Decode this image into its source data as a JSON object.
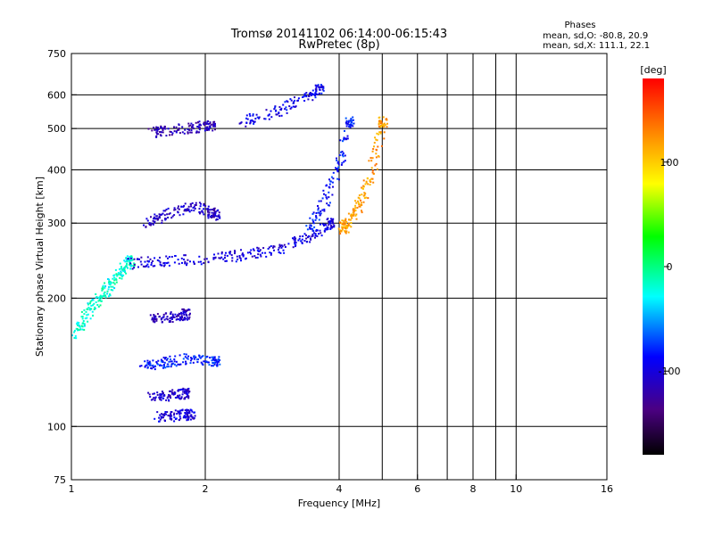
{
  "chart_data": {
    "type": "scatter",
    "title": "Tromsø 20141102 06:14:00-06:15:43",
    "subtitle": "RwPretec (8p)",
    "xlabel": "Frequency [MHz]",
    "ylabel": "Stationary phase Virtual Height [km]",
    "x_scale": "log",
    "y_scale": "log",
    "xlim": [
      1,
      16
    ],
    "ylim": [
      75,
      750
    ],
    "x_ticks": [
      1,
      2,
      4,
      6,
      8,
      10,
      16
    ],
    "x_tick_labels": [
      "1",
      "2",
      "4",
      "6",
      "8",
      "10",
      "16"
    ],
    "x_gridlines": [
      2,
      4,
      6,
      8,
      10
    ],
    "x_minor_gridlines": [
      5,
      7,
      9
    ],
    "y_ticks": [
      75,
      100,
      200,
      300,
      400,
      500,
      600,
      750
    ],
    "y_tick_labels": [
      "75",
      "100",
      "200",
      "300",
      "400",
      "500",
      "600",
      "750"
    ],
    "y_gridlines": [
      100,
      200,
      300,
      400,
      500,
      600
    ],
    "grid": true,
    "legend": {
      "heading": "Phases",
      "line1": "mean, sd,O: -80.8, 20.9",
      "line2": "mean, sd,X: 111.1, 22.1"
    },
    "colorbar": {
      "label": "[deg]",
      "min": -180,
      "max": 180,
      "ticks": [
        100,
        0,
        -100
      ],
      "tick_labels": [
        "100",
        "0",
        "-100"
      ]
    },
    "traces": [
      {
        "x": [
          1.0,
          1.05,
          1.1,
          1.15,
          1.2,
          1.25,
          1.3,
          1.35
        ],
        "y": [
          160,
          175,
          190,
          200,
          210,
          225,
          235,
          245
        ],
        "color_value": -20
      },
      {
        "x": [
          1.35,
          1.5,
          1.7,
          2.0,
          2.3,
          2.6,
          2.9,
          3.2,
          3.5,
          3.8
        ],
        "y": [
          242,
          244,
          246,
          248,
          252,
          256,
          262,
          272,
          285,
          300
        ],
        "color_value": -100
      },
      {
        "x": [
          3.4,
          3.6,
          3.8,
          4.0,
          4.2
        ],
        "y": [
          290,
          320,
          360,
          420,
          520
        ],
        "color_value": -85
      },
      {
        "x": [
          4.0,
          4.1,
          4.2,
          4.4,
          4.6,
          4.8,
          5.0
        ],
        "y": [
          290,
          295,
          305,
          330,
          370,
          430,
          520
        ],
        "color_value": 120
      },
      {
        "x": [
          1.5,
          1.6,
          1.75,
          1.9,
          2.05
        ],
        "y": [
          490,
          495,
          500,
          505,
          510
        ],
        "color_value": -115
      },
      {
        "x": [
          2.4,
          2.7,
          3.0,
          3.3,
          3.6
        ],
        "y": [
          520,
          540,
          560,
          590,
          620
        ],
        "color_value": -95
      },
      {
        "x": [
          1.45,
          1.55,
          1.7,
          1.85,
          2.0,
          2.1
        ],
        "y": [
          300,
          310,
          320,
          330,
          325,
          315
        ],
        "color_value": -110
      },
      {
        "x": [
          1.45,
          1.55,
          1.65,
          1.8,
          1.95,
          2.1
        ],
        "y": [
          140,
          140,
          142,
          145,
          144,
          143
        ],
        "color_value": -80
      },
      {
        "x": [
          1.5,
          1.6,
          1.7,
          1.8
        ],
        "y": [
          118,
          118,
          119,
          120
        ],
        "color_value": -105
      },
      {
        "x": [
          1.55,
          1.65,
          1.75,
          1.85
        ],
        "y": [
          106,
          106,
          107,
          107
        ],
        "color_value": -100
      },
      {
        "x": [
          1.5,
          1.6,
          1.7,
          1.8
        ],
        "y": [
          178,
          180,
          182,
          184
        ],
        "color_value": -110
      }
    ]
  }
}
